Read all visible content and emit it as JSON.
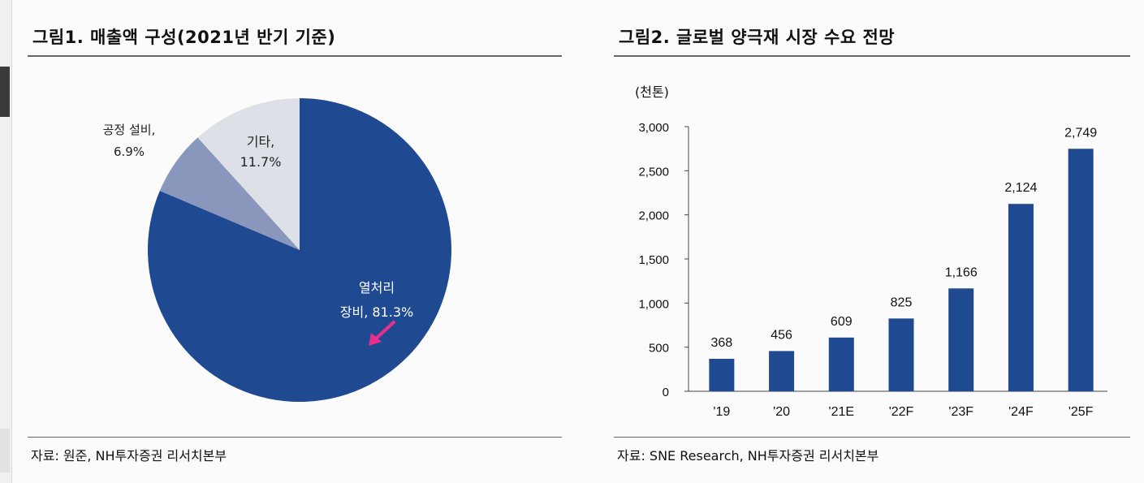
{
  "figure1": {
    "title": "그림1. 매출액 구성(2021년 반기 기준)",
    "source": "자료: 원준, NH투자증권 리서치본부",
    "chart_data": {
      "type": "pie",
      "slices": [
        {
          "label_line1": "열처리",
          "label_line2": "장비, 81.3%",
          "value": 81.3,
          "color": "#1f4a92"
        },
        {
          "label_line1": "공정 설비,",
          "label_line2": "6.9%",
          "value": 6.9,
          "color": "#8a97bd"
        },
        {
          "label_line1": "기타,",
          "label_line2": "11.7%",
          "value": 11.7,
          "color": "#dde0e7"
        }
      ]
    }
  },
  "figure2": {
    "title": "그림2. 글로벌 양극재 시장 수요 전망",
    "source": "자료: SNE Research, NH투자증권 리서치본부",
    "unit": "(천톤)",
    "chart_data": {
      "type": "bar",
      "categories": [
        "'19",
        "'20",
        "'21E",
        "'22F",
        "'23F",
        "'24F",
        "'25F"
      ],
      "values": [
        368,
        456,
        609,
        825,
        1166,
        2124,
        2749
      ],
      "value_labels": [
        "368",
        "456",
        "609",
        "825",
        "1,166",
        "2,124",
        "2,749"
      ],
      "ylim": [
        0,
        3000
      ],
      "yticks": [
        0,
        500,
        1000,
        1500,
        2000,
        2500,
        3000
      ],
      "ytick_labels": [
        "0",
        "500",
        "1,000",
        "1,500",
        "2,000",
        "2,500",
        "3,000"
      ],
      "bar_color": "#1f4a92"
    }
  }
}
